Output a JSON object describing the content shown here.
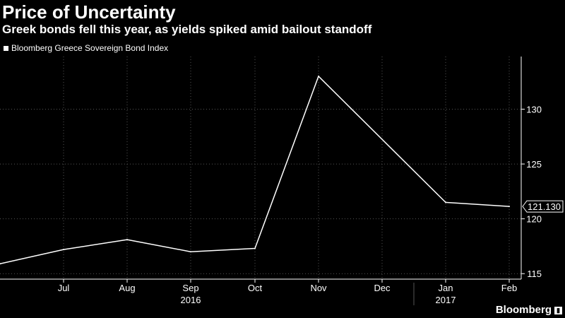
{
  "title": "Price of Uncertainty",
  "subtitle": "Greek bonds fell this year, as yields spiked amid bailout standoff",
  "brand": "Bloomberg",
  "colors": {
    "background": "#000000",
    "line": "#ffffff",
    "grid": "#555555",
    "text": "#ffffff"
  },
  "chart_data": {
    "type": "line",
    "title": "Price of Uncertainty",
    "subtitle": "Greek bonds fell this year, as yields spiked amid bailout standoff",
    "legend": [
      "Bloomberg Greece Sovereign Bond Index"
    ],
    "legend_position": "top-left",
    "grid": true,
    "y_axis_position": "right",
    "ylim": [
      114.5,
      134.8
    ],
    "y_ticks": [
      115,
      120,
      125,
      130
    ],
    "x_ticks": [
      "Jul",
      "Aug",
      "Sep",
      "Oct",
      "Nov",
      "Dec",
      "Jan",
      "Feb"
    ],
    "x_year_labels": [
      {
        "label": "2016",
        "under": "Sep"
      },
      {
        "label": "2017",
        "under": "Jan"
      }
    ],
    "series": [
      {
        "name": "Bloomberg Greece Sovereign Bond Index",
        "x": [
          "Jun",
          "Jul",
          "Aug",
          "Sep",
          "Oct",
          "Nov",
          "Jan",
          "Feb"
        ],
        "y": [
          115.9,
          117.2,
          118.1,
          117.0,
          117.3,
          133.0,
          121.5,
          121.13
        ]
      }
    ],
    "last_value_label": "121.130"
  }
}
